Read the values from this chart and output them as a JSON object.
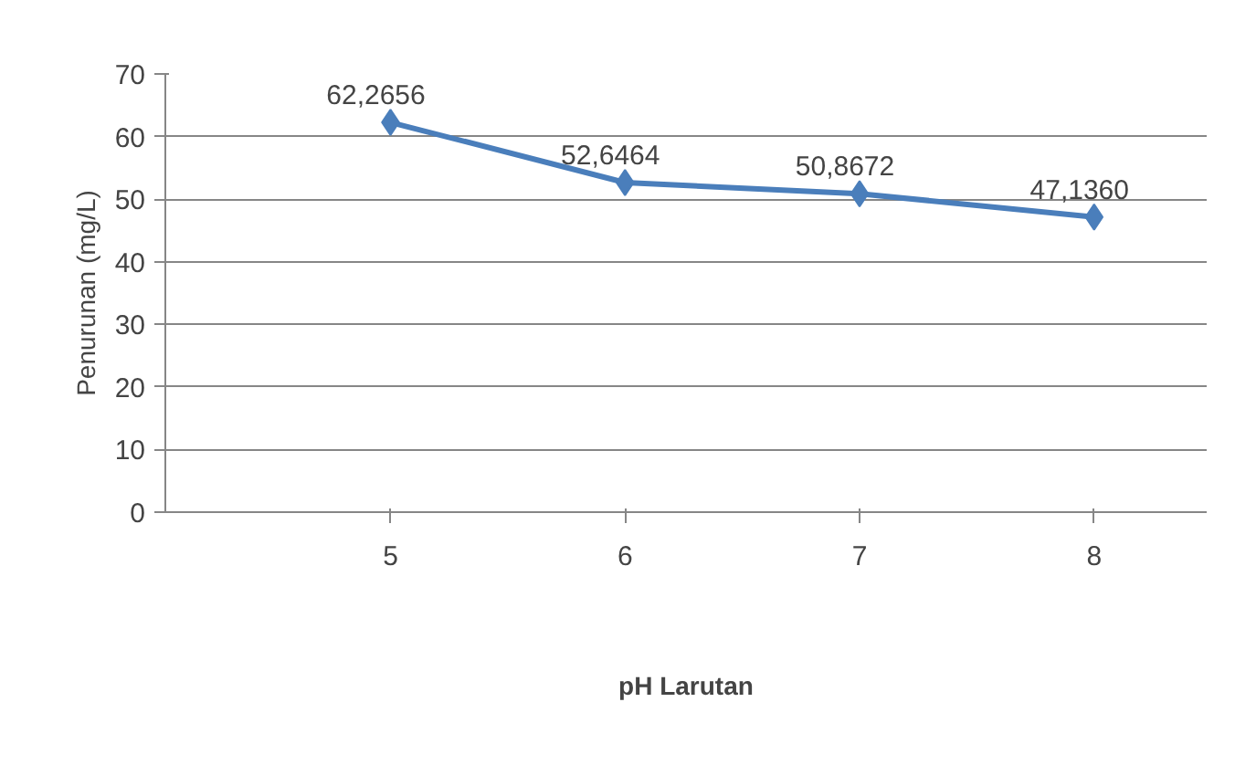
{
  "chart_data": {
    "type": "line",
    "xlabel": "pH Larutan",
    "ylabel": "Penurunan (mg/L)",
    "categories": [
      "5",
      "6",
      "7",
      "8"
    ],
    "series": [
      {
        "color": "#4a7ebb",
        "values": [
          62.2656,
          52.6464,
          50.8672,
          47.136
        ],
        "value_labels": [
          "62,2656",
          "52,6464",
          "50,8672",
          "47,1360"
        ]
      }
    ],
    "ylim": [
      0,
      70
    ],
    "yticks": [
      0,
      10,
      20,
      30,
      40,
      50,
      60,
      70
    ],
    "grid": "y",
    "marker": "diamond",
    "line_style": "solid"
  }
}
